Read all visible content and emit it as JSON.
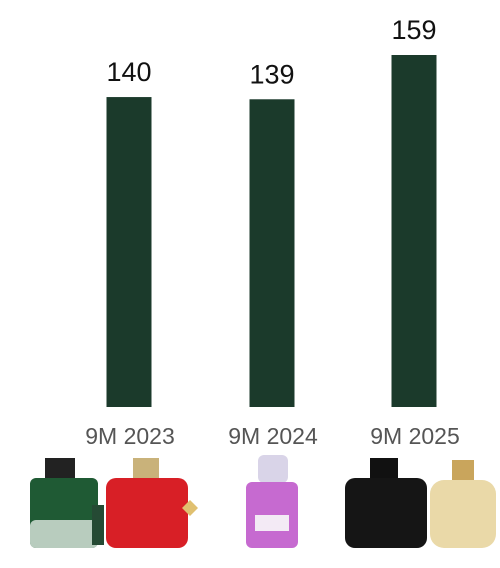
{
  "chart_data": {
    "type": "bar",
    "categories": [
      "9M 2023",
      "9M 2024",
      "9M 2025"
    ],
    "values": [
      140,
      139,
      159
    ],
    "color": "#1b3a2b"
  }
}
